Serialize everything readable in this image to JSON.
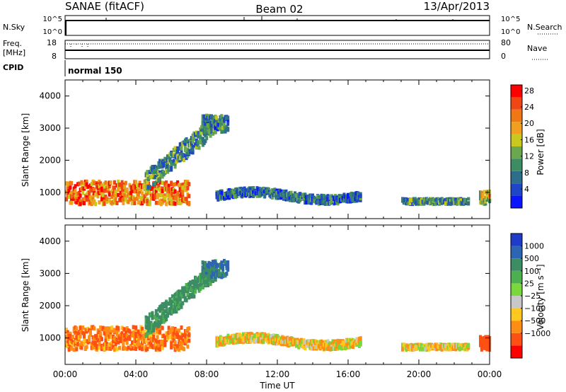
{
  "header": {
    "station": "SANAE (fitACF)",
    "beam": "Beam 02",
    "date": "13/Apr/2013"
  },
  "top_panels": {
    "nsky_label": "N.Sky",
    "nsky_ticks": [
      "10^5",
      "10^0"
    ],
    "nsearch_label": "N.Search",
    "nsearch_ticks": [
      "10^5",
      "10^0"
    ],
    "freq_label": "Freq.",
    "freq_unit": "[MHz]",
    "freq_ticks": [
      "18",
      "8"
    ],
    "nave_label": "Nave",
    "nave_ticks": [
      "80",
      "0"
    ],
    "cpid_label": "CPID",
    "cpid_value": "normal 150"
  },
  "power_panel": {
    "ylabel": "Slant Range [km]",
    "yticks": [
      "4000",
      "3000",
      "2000",
      "1000"
    ],
    "colorbar_label": "Power [dB]",
    "colorbar_ticks": [
      "28",
      "24",
      "20",
      "16",
      "12",
      "8",
      "4"
    ],
    "colors": [
      "#0a14ff",
      "#1f46c8",
      "#2e6e8c",
      "#3c8c64",
      "#6aa84f",
      "#c8c81e",
      "#f0a01e",
      "#f07814",
      "#f04614",
      "#ff0000"
    ]
  },
  "velocity_panel": {
    "ylabel": "Slant Range [km]",
    "yticks": [
      "4000",
      "3000",
      "2000",
      "1000"
    ],
    "colorbar_label": "Velocity [m s⁻¹]",
    "colorbar_ticks": [
      "1000",
      "500",
      "100",
      "25",
      "−25",
      "−100",
      "−500",
      "−1000"
    ],
    "colors": [
      "#1e3cc8",
      "#2d64b4",
      "#3c8c64",
      "#4caf50",
      "#7ad83c",
      "#c8c8c8",
      "#ffc81e",
      "#ff8c14",
      "#ff5014",
      "#ff0000"
    ]
  },
  "xaxis": {
    "label": "Time UT",
    "ticks": [
      "00:00",
      "04:00",
      "08:00",
      "12:00",
      "16:00",
      "20:00",
      "00:00"
    ]
  },
  "chart_data": {
    "type": "heatmap",
    "x_range_hours": [
      0,
      24
    ],
    "y_range_km": [
      180,
      4500
    ],
    "bands": [
      {
        "name": "near-range band",
        "t_start": 0.0,
        "t_end": 7.0,
        "range_center_km": 1050,
        "range_width_km": 700,
        "power_db": 22,
        "velocity_mps": -100
      },
      {
        "name": "rising arc",
        "t_start": 4.5,
        "t_end": 8.5,
        "range_center_km": 2200,
        "range_width_km": 600,
        "power_db": 10,
        "velocity_mps": 300
      },
      {
        "name": "far scatter",
        "t_start": 7.7,
        "t_end": 9.2,
        "range_center_km": 3200,
        "range_width_km": 500,
        "power_db": 9,
        "velocity_mps": 500
      },
      {
        "name": "mid-day band",
        "t_start": 8.5,
        "t_end": 16.7,
        "range_center_km": 950,
        "range_width_km": 250,
        "power_db": 8,
        "velocity_mps": 0
      },
      {
        "name": "evening band",
        "t_start": 19.0,
        "t_end": 22.8,
        "range_center_km": 780,
        "range_width_km": 150,
        "power_db": 10,
        "velocity_mps": 0
      },
      {
        "name": "late-night band",
        "t_start": 23.4,
        "t_end": 24.0,
        "range_center_km": 900,
        "range_width_km": 400,
        "power_db": 16,
        "velocity_mps": -300
      }
    ]
  }
}
